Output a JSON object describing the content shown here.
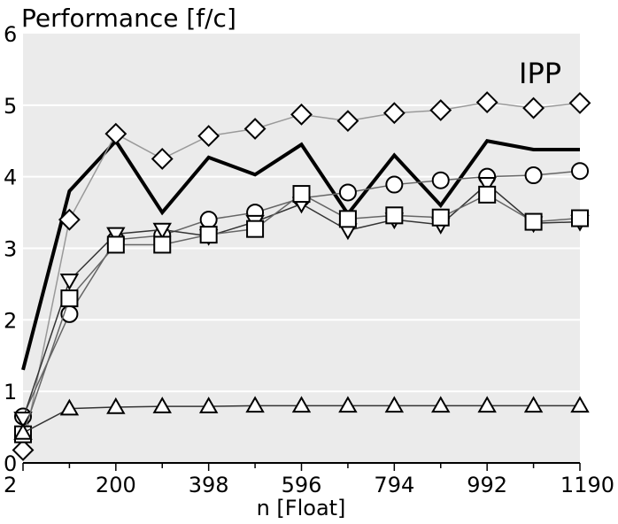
{
  "chart_data": {
    "type": "line",
    "title": "Performance [f/c]",
    "xlabel": "n [Float]",
    "ylabel": "",
    "xlim": [
      2,
      1190
    ],
    "ylim": [
      0,
      6
    ],
    "xticks": [
      2,
      200,
      398,
      596,
      794,
      992,
      1190
    ],
    "xticks_minor": [
      101,
      299,
      497,
      695,
      893,
      1091
    ],
    "yticks": [
      0,
      1,
      2,
      3,
      4,
      5,
      6
    ],
    "grid": true,
    "background": "#ebebeb",
    "annotation": "IPP",
    "x": [
      2,
      101,
      200,
      299,
      398,
      497,
      596,
      695,
      794,
      893,
      992,
      1091,
      1190
    ],
    "series": [
      {
        "marker": "none",
        "color": "#000000",
        "width": 4,
        "values": [
          1.3,
          3.8,
          4.5,
          3.5,
          4.27,
          4.03,
          4.45,
          3.48,
          4.3,
          3.6,
          4.5,
          4.38,
          4.38
        ]
      },
      {
        "marker": "diamond",
        "color": "#999999",
        "width": 1.5,
        "values": [
          0.18,
          3.4,
          4.6,
          4.25,
          4.57,
          4.67,
          4.87,
          4.78,
          4.89,
          4.93,
          5.04,
          4.96,
          5.03
        ]
      },
      {
        "marker": "circle",
        "color": "#666666",
        "width": 1.5,
        "values": [
          0.65,
          2.08,
          3.12,
          3.18,
          3.4,
          3.5,
          3.7,
          3.78,
          3.89,
          3.95,
          4.0,
          4.02,
          4.08
        ]
      },
      {
        "marker": "triangle-down",
        "color": "#333333",
        "width": 1.5,
        "values": [
          0.62,
          2.55,
          3.2,
          3.26,
          3.17,
          3.37,
          3.62,
          3.25,
          3.4,
          3.33,
          3.9,
          3.35,
          3.37
        ]
      },
      {
        "marker": "square",
        "color": "#666666",
        "width": 1.5,
        "values": [
          0.4,
          2.3,
          3.05,
          3.05,
          3.19,
          3.27,
          3.76,
          3.41,
          3.46,
          3.43,
          3.75,
          3.37,
          3.42
        ]
      },
      {
        "marker": "triangle-up",
        "color": "#333333",
        "width": 1.5,
        "values": [
          0.42,
          0.76,
          0.78,
          0.79,
          0.79,
          0.8,
          0.8,
          0.8,
          0.8,
          0.8,
          0.8,
          0.8,
          0.8
        ]
      }
    ]
  }
}
